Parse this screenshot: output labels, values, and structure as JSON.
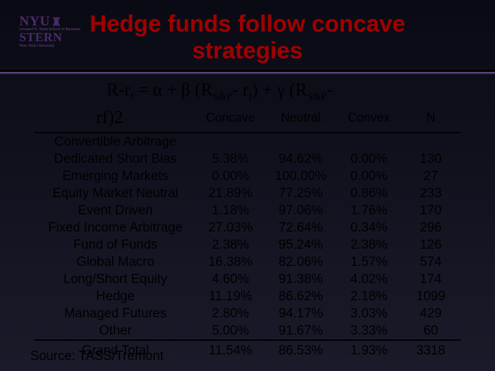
{
  "logo": {
    "line1": "NYU",
    "line2": "STERN",
    "sub1": "Leonard N. Stern School of Business",
    "sub2": "New York University"
  },
  "title": {
    "line1": "Hedge funds follow concave",
    "line2": "strategies"
  },
  "formula": {
    "prefix": "R-r",
    "sub1": "f",
    "mid1": " = α + β (R",
    "sub2": "S&P",
    "mid2": "- r",
    "sub3": "f",
    "mid3": ") + γ (R",
    "sub4": "S&P",
    "mid4": "-",
    "line2_pre": "r",
    "line2_sub": "f",
    "line2_post": ")",
    "line2_sup": "2"
  },
  "headers": {
    "concave": "Concave",
    "neutral": "Neutral",
    "convex": "Convex",
    "n": "N"
  },
  "rows": [
    {
      "name": "Convertible Arbitrage",
      "concave": "",
      "neutral": "",
      "convex": "",
      "n": ""
    },
    {
      "name": "Dedicated Short Bias",
      "concave": "5.38%",
      "neutral": "94.62%",
      "convex": "0.00%",
      "n": "130"
    },
    {
      "name": "Emerging Markets",
      "concave": "0.00%",
      "neutral": "100.00%",
      "convex": "0.00%",
      "n": "27"
    },
    {
      "name": "Equity Market Neutral",
      "concave": "21.89%",
      "neutral": "77.25%",
      "convex": "0.86%",
      "n": "233"
    },
    {
      "name": "Event Driven",
      "concave": "1.18%",
      "neutral": "97.06%",
      "convex": "1.76%",
      "n": "170"
    },
    {
      "name": "Fixed Income Arbitrage",
      "concave": "27.03%",
      "neutral": "72.64%",
      "convex": "0.34%",
      "n": "296"
    },
    {
      "name": "Fund of Funds",
      "concave": "2.38%",
      "neutral": "95.24%",
      "convex": "2.38%",
      "n": "126"
    },
    {
      "name": "Global Macro",
      "concave": "16.38%",
      "neutral": "82.06%",
      "convex": "1.57%",
      "n": "574"
    },
    {
      "name": "Long/Short Equity",
      "concave": "4.60%",
      "neutral": "91.38%",
      "convex": "4.02%",
      "n": "174"
    },
    {
      "name": "Hedge",
      "concave": "11.19%",
      "neutral": "86.62%",
      "convex": "2.18%",
      "n": "1099"
    },
    {
      "name": "Managed Futures",
      "concave": "2.80%",
      "neutral": "94.17%",
      "convex": "3.03%",
      "n": "429"
    },
    {
      "name": "Other",
      "concave": "5.00%",
      "neutral": "91.67%",
      "convex": "3.33%",
      "n": "60"
    }
  ],
  "total": {
    "name": "Grand Total",
    "concave": "11.54%",
    "neutral": "86.53%",
    "convex": "1.93%",
    "n": "3318"
  },
  "source": "Source: TASS/Tremont",
  "colors": {
    "title": "#a00000",
    "background_top": "#0a0a14",
    "background_bottom": "#1a1a2a"
  }
}
